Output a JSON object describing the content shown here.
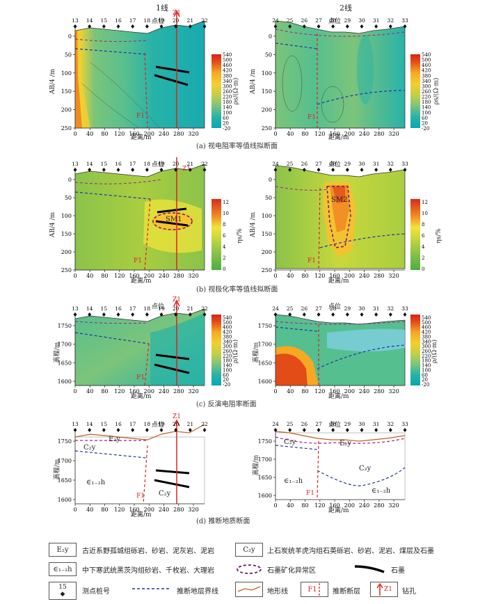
{
  "headers": {
    "line1": "1线",
    "line2": "2线"
  },
  "station_label": "点位",
  "x_axis_label": "距离/m",
  "x_ticks": [
    "0",
    "40",
    "80",
    "120",
    "160",
    "200",
    "240",
    "280",
    "320"
  ],
  "line1_stations": [
    "13",
    "14",
    "15",
    "16",
    "17",
    "18",
    "19",
    "20",
    "21",
    "22"
  ],
  "line2_stations": [
    "24",
    "25",
    "26",
    "27",
    "28",
    "29",
    "30",
    "31",
    "32",
    "33"
  ],
  "panels": {
    "a": {
      "caption": "(a) 视电阻率等值线拟断面",
      "y_ticks": [
        "0",
        "50",
        "100",
        "150",
        "200",
        "250"
      ],
      "y_label": "AB/4 /m",
      "cb_ticks": [
        "540",
        "500",
        "460",
        "420",
        "380",
        "340",
        "300",
        "260",
        "220",
        "180",
        "140",
        "100",
        "60",
        "20",
        "-20"
      ],
      "cb_label": "ρs/(Ω·m)"
    },
    "b": {
      "caption": "(b) 视极化率等值线拟断面",
      "y_ticks": [
        "0",
        "50",
        "100",
        "150",
        "200",
        "250"
      ],
      "y_label": "AB/4 /m",
      "cb_ticks": [
        "12",
        "10",
        "8",
        "6",
        "4",
        "2",
        "0"
      ],
      "cb_label": "ηs/%",
      "anomaly_left": "SM1",
      "anomaly_right": "SM2"
    },
    "c": {
      "caption": "(c) 反演电阻率断面",
      "y_ticks": [
        "1750",
        "1700",
        "1650",
        "1600"
      ],
      "y_label": "高程/m",
      "cb_ticks": [
        "540",
        "500",
        "460",
        "420",
        "380",
        "340",
        "300",
        "260",
        "220",
        "180",
        "140",
        "100",
        "60",
        "20",
        "-20"
      ],
      "cb_label": "ρ/(Ω·m)"
    },
    "d": {
      "caption": "(d) 推断地质断面",
      "y_ticks": [
        "1750",
        "1700",
        "1650",
        "1600"
      ],
      "y_label": "高程/m",
      "units": {
        "e2y": "E₂y",
        "c2y": "C₂y",
        "e12h": "∈₁₋₂h"
      }
    }
  },
  "fault_label": "F1",
  "drill_label": "Z1",
  "colors": {
    "resistivity": [
      "#0aa6b4",
      "#27b3a8",
      "#55bf8f",
      "#7cc47a",
      "#a8c95a",
      "#c4cf48",
      "#e0d23c",
      "#f2cf2e",
      "#f6a823",
      "#ee7a1c",
      "#e34b17",
      "#d8211a"
    ],
    "polar": [
      "#4caf3f",
      "#8bc34a",
      "#c8d83c",
      "#f0e43a",
      "#f7c12e",
      "#f29025",
      "#e55b1d",
      "#d92a1a"
    ],
    "fault": "#d22",
    "formation_boundary": "#2233aa",
    "e2y_boundary": "#a0208c",
    "topo": "#c06020",
    "graphite": "#000"
  },
  "legend": {
    "e2y_text": "古近系野孤城组砾岩、砂岩、泥灰岩、泥岩",
    "c2y_text": "上石炭统羊虎沟组石英砾岩、砂岩、泥岩、煤层及石墨",
    "e12h_text": "中下寒武统黑茨沟组砂岩、千枚岩、大理岩",
    "anomaly_text": "石墨矿化异常区",
    "graphite_text": "石墨",
    "station_num": "15",
    "station_text": "测点桩号",
    "boundary_text": "推断地层界线",
    "topo_text": "地形线",
    "fault_text": "推断断层",
    "drill_text": "钻孔"
  }
}
